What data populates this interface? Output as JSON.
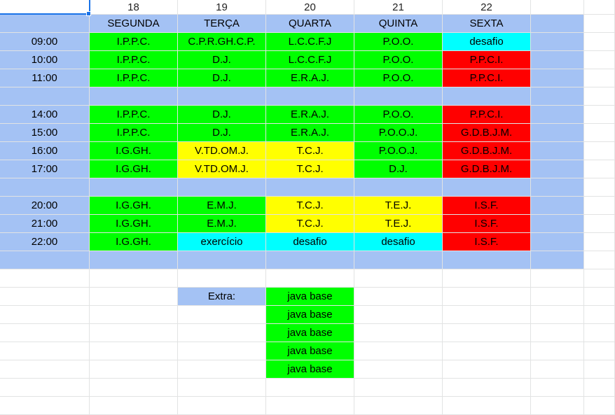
{
  "column_headers": [
    "",
    "18",
    "19",
    "20",
    "21",
    "22",
    ""
  ],
  "days": [
    "SEGUNDA",
    "TERÇA",
    "QUARTA",
    "QUINTA",
    "SEXTA"
  ],
  "rows": [
    {
      "time": "09:00",
      "cells": [
        {
          "t": "I.P.P.C.",
          "c": "green"
        },
        {
          "t": "C.P.R.GH.C.P.",
          "c": "green"
        },
        {
          "t": "L.C.C.F.J",
          "c": "green"
        },
        {
          "t": "P.O.O.",
          "c": "green"
        },
        {
          "t": "desafio",
          "c": "cyan"
        }
      ]
    },
    {
      "time": "10:00",
      "cells": [
        {
          "t": "I.P.P.C.",
          "c": "green"
        },
        {
          "t": "D.J.",
          "c": "green"
        },
        {
          "t": "L.C.C.F.J",
          "c": "green"
        },
        {
          "t": "P.O.O.",
          "c": "green"
        },
        {
          "t": "P.P.C.I.",
          "c": "red"
        }
      ]
    },
    {
      "time": "11:00",
      "cells": [
        {
          "t": "I.P.P.C.",
          "c": "green"
        },
        {
          "t": "D.J.",
          "c": "green"
        },
        {
          "t": "E.R.A.J.",
          "c": "green"
        },
        {
          "t": "P.O.O.",
          "c": "green"
        },
        {
          "t": "P.P.C.I.",
          "c": "red"
        }
      ]
    },
    {
      "time": "",
      "cells": []
    },
    {
      "time": "14:00",
      "cells": [
        {
          "t": "I.P.P.C.",
          "c": "green"
        },
        {
          "t": "D.J.",
          "c": "green"
        },
        {
          "t": "E.R.A.J.",
          "c": "green"
        },
        {
          "t": "P.O.O.",
          "c": "green"
        },
        {
          "t": "P.P.C.I.",
          "c": "red"
        }
      ]
    },
    {
      "time": "15:00",
      "cells": [
        {
          "t": "I.P.P.C.",
          "c": "green"
        },
        {
          "t": "D.J.",
          "c": "green"
        },
        {
          "t": "E.R.A.J.",
          "c": "green"
        },
        {
          "t": "P.O.O.J.",
          "c": "green"
        },
        {
          "t": "G.D.B.J.M.",
          "c": "red"
        }
      ]
    },
    {
      "time": "16:00",
      "cells": [
        {
          "t": "I.G.GH.",
          "c": "green"
        },
        {
          "t": "V.TD.OM.J.",
          "c": "yellow"
        },
        {
          "t": "T.C.J.",
          "c": "yellow"
        },
        {
          "t": "P.O.O.J.",
          "c": "green"
        },
        {
          "t": "G.D.B.J.M.",
          "c": "red"
        }
      ]
    },
    {
      "time": "17:00",
      "cells": [
        {
          "t": "I.G.GH.",
          "c": "green"
        },
        {
          "t": "V.TD.OM.J.",
          "c": "yellow"
        },
        {
          "t": "T.C.J.",
          "c": "yellow"
        },
        {
          "t": "D.J.",
          "c": "green"
        },
        {
          "t": "G.D.B.J.M.",
          "c": "red"
        }
      ]
    },
    {
      "time": "",
      "cells": []
    },
    {
      "time": "20:00",
      "cells": [
        {
          "t": "I.G.GH.",
          "c": "green"
        },
        {
          "t": "E.M.J.",
          "c": "green"
        },
        {
          "t": "T.C.J.",
          "c": "yellow"
        },
        {
          "t": "T.E.J.",
          "c": "yellow"
        },
        {
          "t": "I.S.F.",
          "c": "red"
        }
      ]
    },
    {
      "time": "21:00",
      "cells": [
        {
          "t": "I.G.GH.",
          "c": "green"
        },
        {
          "t": "E.M.J.",
          "c": "green"
        },
        {
          "t": "T.C.J.",
          "c": "yellow"
        },
        {
          "t": "T.E.J.",
          "c": "yellow"
        },
        {
          "t": "I.S.F.",
          "c": "red"
        }
      ]
    },
    {
      "time": "22:00",
      "cells": [
        {
          "t": "I.G.GH.",
          "c": "green"
        },
        {
          "t": "exercício",
          "c": "cyan"
        },
        {
          "t": "desafio",
          "c": "cyan"
        },
        {
          "t": "desafio",
          "c": "cyan"
        },
        {
          "t": "I.S.F.",
          "c": "red"
        }
      ]
    },
    {
      "time": "",
      "cells": []
    }
  ],
  "extra": {
    "label": "Extra:",
    "items": [
      "java base",
      "java base",
      "java base",
      "java base",
      "java base"
    ]
  }
}
